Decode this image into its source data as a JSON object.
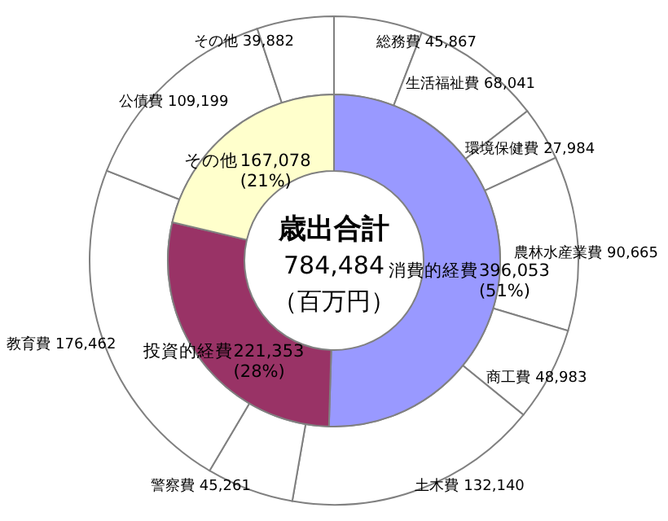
{
  "chart_data": [
    {
      "type": "donut",
      "categories": [
        "消費的経費",
        "投資的経費",
        "その他"
      ],
      "values": [
        396053,
        221353,
        167078
      ],
      "colors": [
        "#9999ff",
        "#993366",
        "#ffffcc"
      ],
      "value_labels": [
        "396,053\n(51%)",
        "221,353\n(28%)",
        "167,078\n(21%)"
      ],
      "annotations": [
        "歳出合計",
        "784,484",
        "（百万円）"
      ]
    },
    {
      "type": "donut",
      "categories": [
        "総務費",
        "生活福祉費",
        "環境保健費",
        "農林水産業費",
        "商工費",
        "土木費",
        "警察費",
        "教育費",
        "公債費",
        "その他"
      ],
      "values": [
        45867,
        68041,
        27984,
        90665,
        48983,
        132140,
        45261,
        176462,
        109199,
        39882
      ],
      "colors": [
        "#ffffff",
        "#ffffff",
        "#ffffff",
        "#ffffff",
        "#ffffff",
        "#ffffff",
        "#ffffff",
        "#ffffff",
        "#ffffff",
        "#ffffff"
      ],
      "value_labels": [
        "45,867",
        "68,041",
        "27,984",
        "90,665",
        "48,983",
        "132,140",
        "45,261",
        "176,462",
        "109,199",
        "39,882"
      ]
    }
  ]
}
